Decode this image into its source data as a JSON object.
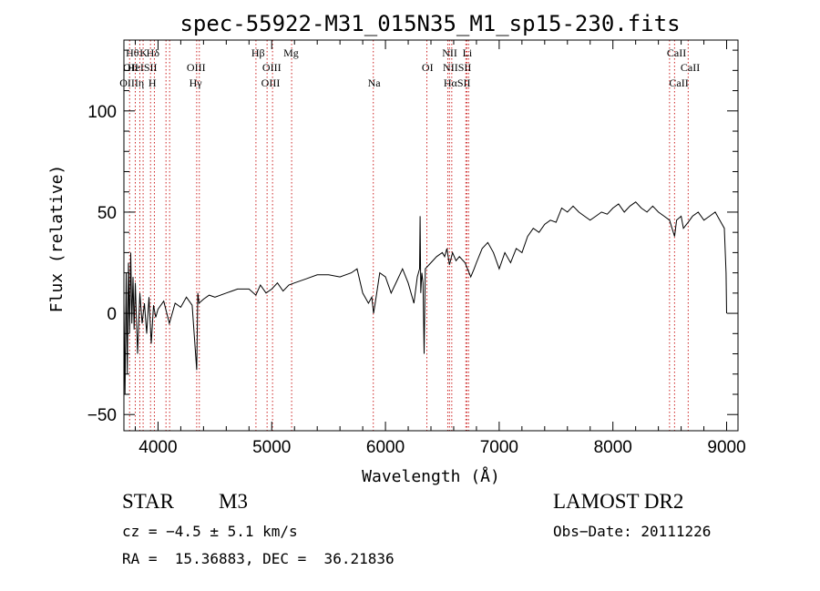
{
  "chart_data": {
    "type": "line",
    "title": "spec-55922-M31_015N35_M1_sp15-230.fits",
    "xlabel": "Wavelength (Å)",
    "ylabel": "Flux (relative)",
    "xlim": [
      3700,
      9100
    ],
    "ylim": [
      -58,
      135
    ],
    "xticks": [
      4000,
      5000,
      6000,
      7000,
      8000,
      9000
    ],
    "yticks": [
      -50,
      0,
      50,
      100
    ],
    "grid": false,
    "series": [
      {
        "x": [
          3700,
          3710,
          3720,
          3730,
          3740,
          3750,
          3760,
          3770,
          3780,
          3790,
          3800,
          3820,
          3840,
          3860,
          3880,
          3900,
          3920,
          3940,
          3960,
          3980,
          4000,
          4050,
          4100,
          4150,
          4200,
          4250,
          4300,
          4340,
          4350,
          4360,
          4400,
          4450,
          4500,
          4600,
          4700,
          4800,
          4860,
          4900,
          4950,
          5000,
          5050,
          5100,
          5150,
          5200,
          5300,
          5400,
          5500,
          5600,
          5700,
          5750,
          5800,
          5850,
          5880,
          5895,
          5910,
          5950,
          6000,
          6050,
          6100,
          6150,
          6200,
          6250,
          6280,
          6300,
          6305,
          6310,
          6320,
          6330,
          6340,
          6350,
          6400,
          6450,
          6500,
          6520,
          6540,
          6563,
          6590,
          6620,
          6650,
          6700,
          6750,
          6780,
          6800,
          6850,
          6900,
          6950,
          7000,
          7050,
          7100,
          7150,
          7200,
          7250,
          7300,
          7350,
          7400,
          7450,
          7500,
          7550,
          7600,
          7650,
          7700,
          7750,
          7800,
          7850,
          7900,
          7950,
          8000,
          8050,
          8100,
          8150,
          8200,
          8250,
          8300,
          8350,
          8400,
          8450,
          8498,
          8520,
          8542,
          8560,
          8600,
          8620,
          8662,
          8700,
          8750,
          8800,
          8850,
          8900,
          8950,
          8980,
          8995,
          9000
        ],
        "y": [
          5,
          -40,
          20,
          -30,
          25,
          -10,
          30,
          -5,
          18,
          -8,
          15,
          -20,
          10,
          -5,
          5,
          -10,
          8,
          -15,
          4,
          -2,
          2,
          6,
          -5,
          5,
          3,
          8,
          4,
          -28,
          10,
          5,
          7,
          9,
          8,
          10,
          12,
          12,
          9,
          14,
          10,
          12,
          15,
          11,
          14,
          15,
          17,
          19,
          19,
          18,
          20,
          22,
          10,
          5,
          8,
          0,
          5,
          20,
          18,
          10,
          16,
          22,
          15,
          5,
          18,
          22,
          48,
          10,
          20,
          15,
          -20,
          22,
          25,
          28,
          30,
          28,
          32,
          24,
          30,
          26,
          28,
          25,
          18,
          22,
          25,
          32,
          35,
          30,
          22,
          30,
          25,
          32,
          30,
          38,
          42,
          40,
          44,
          46,
          45,
          52,
          50,
          53,
          50,
          48,
          46,
          48,
          50,
          49,
          52,
          54,
          50,
          53,
          55,
          52,
          50,
          53,
          50,
          48,
          46,
          42,
          38,
          46,
          48,
          42,
          45,
          48,
          50,
          46,
          48,
          50,
          45,
          42,
          20,
          0
        ]
      }
    ],
    "lines_label_top": [
      {
        "x": 3750,
        "label": "Hθ"
      },
      {
        "x": 3800,
        "label": "Hη"
      },
      {
        "x": 3840,
        "label": "OII"
      },
      {
        "x": 3869,
        "label": "HeI"
      },
      {
        "x": 3934,
        "label": "K"
      },
      {
        "x": 3968,
        "label": "H"
      },
      {
        "x": 4070,
        "label": "SII"
      },
      {
        "x": 4102,
        "label": "Hδ"
      },
      {
        "x": 4340,
        "label": "Hγ"
      },
      {
        "x": 4363,
        "label": "OIII"
      },
      {
        "x": 4861,
        "label": "Hβ"
      },
      {
        "x": 4959,
        "label": "OIII"
      },
      {
        "x": 5007,
        "label": "OIII"
      },
      {
        "x": 5175,
        "label": "Mg"
      },
      {
        "x": 5893,
        "label": "Na"
      },
      {
        "x": 6364,
        "label": "OI"
      },
      {
        "x": 6548,
        "label": "NII"
      },
      {
        "x": 6563,
        "label": "Hα"
      },
      {
        "x": 6583,
        "label": "NII"
      },
      {
        "x": 6707,
        "label": "Li"
      },
      {
        "x": 6716,
        "label": "SII"
      },
      {
        "x": 6731,
        "label": "SII"
      },
      {
        "x": 8498,
        "label": "CaII"
      },
      {
        "x": 8542,
        "label": "CaII"
      },
      {
        "x": 8662,
        "label": "CaII"
      }
    ],
    "line_texts": [
      {
        "x": 3775,
        "row": 1,
        "label": "Hθ"
      },
      {
        "x": 3873,
        "row": 1,
        "label": "K"
      },
      {
        "x": 3955,
        "row": 1,
        "label": "Hδ"
      },
      {
        "x": 3760,
        "row": 2,
        "label": "OII"
      },
      {
        "x": 3862,
        "row": 2,
        "label": "HeISII"
      },
      {
        "x": 4335,
        "row": 2,
        "label": "OIII"
      },
      {
        "x": 3770,
        "row": 3,
        "label": "OIIIη"
      },
      {
        "x": 3950,
        "row": 3,
        "label": "H"
      },
      {
        "x": 4330,
        "row": 3,
        "label": "Hγ"
      },
      {
        "x": 4880,
        "row": 1,
        "label": "Hβ"
      },
      {
        "x": 5170,
        "row": 1,
        "label": "Mg"
      },
      {
        "x": 5000,
        "row": 2,
        "label": "OIII"
      },
      {
        "x": 4990,
        "row": 3,
        "label": "OIII"
      },
      {
        "x": 5900,
        "row": 3,
        "label": "Na"
      },
      {
        "x": 6370,
        "row": 2,
        "label": "OI"
      },
      {
        "x": 6565,
        "row": 1,
        "label": "NII"
      },
      {
        "x": 6720,
        "row": 1,
        "label": "Li"
      },
      {
        "x": 6630,
        "row": 2,
        "label": "NIISII"
      },
      {
        "x": 6630,
        "row": 3,
        "label": "HαSII"
      },
      {
        "x": 8560,
        "row": 1,
        "label": "CaII"
      },
      {
        "x": 8680,
        "row": 2,
        "label": "CaII"
      },
      {
        "x": 8580,
        "row": 3,
        "label": "CaII"
      }
    ]
  },
  "info": {
    "class": "STAR",
    "subclass": "M3",
    "survey": "LAMOST DR2",
    "cz": "cz = −4.5 ± 5.1 km/s",
    "obs_date": "Obs−Date: 20111226",
    "radec": "RA =  15.36883, DEC =  36.21836"
  },
  "colors": {
    "spectrum": "#000000",
    "line_marker": "#cc2222",
    "frame": "#000000"
  }
}
